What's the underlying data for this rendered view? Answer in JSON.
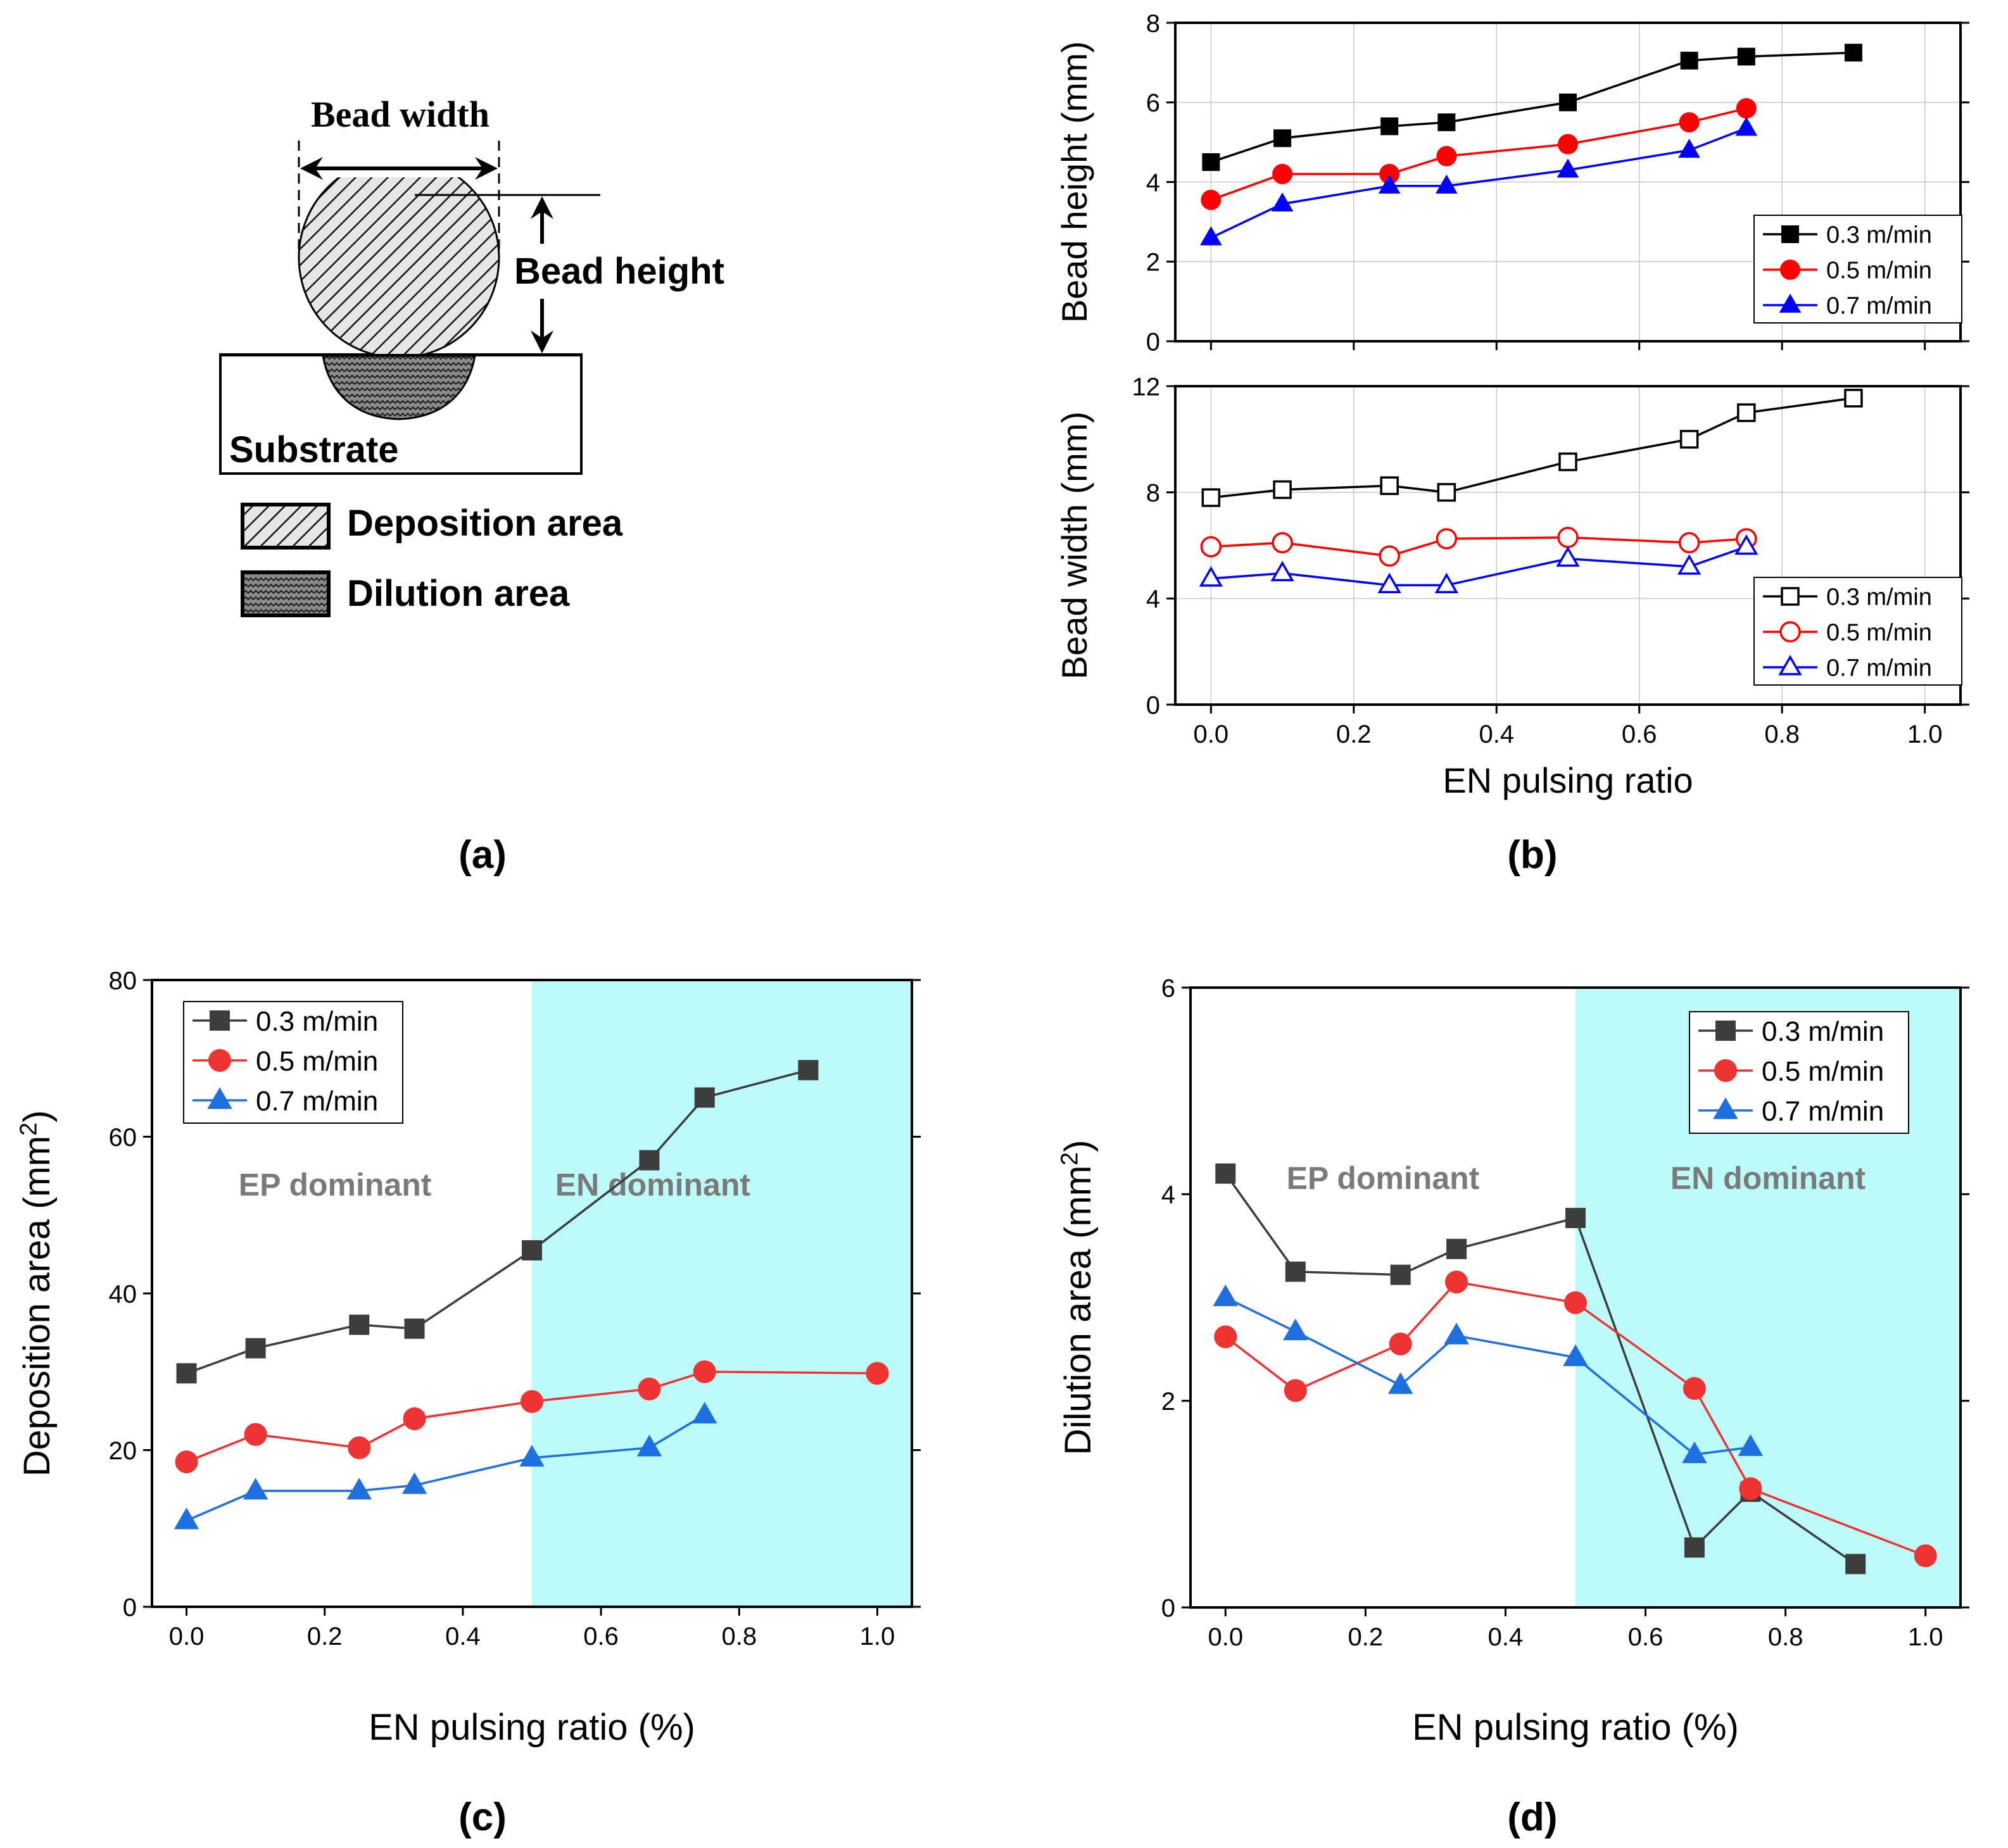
{
  "figure": {
    "panel_labels": [
      "(a)",
      "(b)",
      "(c)",
      "(d)"
    ]
  },
  "diagram": {
    "bead_width": "Bead width",
    "bead_height": "Bead height",
    "substrate": "Substrate",
    "legend_deposition": "Deposition area",
    "legend_dilution": "Dilution area"
  },
  "chart_data": [
    {
      "id": "b-top",
      "type": "line",
      "title": "",
      "xlabel": "",
      "ylabel": "Bead height (mm)",
      "xlim": [
        -0.05,
        1.05
      ],
      "ylim": [
        0,
        8
      ],
      "xticks": [
        0.0,
        0.2,
        0.4,
        0.6,
        0.8,
        1.0
      ],
      "yticks": [
        0,
        2,
        4,
        6,
        8
      ],
      "yticklabels": [
        "0",
        "2",
        "4",
        "6",
        "8"
      ],
      "grid": true,
      "legend_position": "bottom-right",
      "series": [
        {
          "name": "0.3 m/min",
          "color": "#000000",
          "marker": "square",
          "filled": true,
          "x": [
            0,
            0.1,
            0.25,
            0.33,
            0.5,
            0.67,
            0.75,
            0.9
          ],
          "y": [
            4.5,
            5.1,
            5.4,
            5.5,
            6.0,
            7.05,
            7.15,
            7.25
          ]
        },
        {
          "name": "0.5 m/min",
          "color": "#ff0000",
          "marker": "circle",
          "filled": true,
          "x": [
            0,
            0.1,
            0.25,
            0.33,
            0.5,
            0.67,
            0.75
          ],
          "y": [
            3.55,
            4.2,
            4.2,
            4.65,
            4.95,
            5.5,
            5.85
          ]
        },
        {
          "name": "0.7 m/min",
          "color": "#0000ff",
          "marker": "triangle",
          "filled": true,
          "x": [
            0,
            0.1,
            0.25,
            0.33,
            0.5,
            0.67,
            0.75
          ],
          "y": [
            2.6,
            3.45,
            3.9,
            3.9,
            4.3,
            4.8,
            5.35
          ]
        }
      ]
    },
    {
      "id": "b-bottom",
      "type": "line",
      "title": "",
      "xlabel": "EN pulsing ratio",
      "ylabel": "Bead width (mm)",
      "xlim": [
        -0.05,
        1.05
      ],
      "ylim": [
        0,
        12
      ],
      "xticks": [
        0.0,
        0.2,
        0.4,
        0.6,
        0.8,
        1.0
      ],
      "xticklabels": [
        "0.0",
        "0.2",
        "0.4",
        "0.6",
        "0.8",
        "1.0"
      ],
      "yticks": [
        0,
        4,
        8,
        12
      ],
      "yticklabels": [
        "0",
        "4",
        "8",
        "12"
      ],
      "grid": true,
      "legend_position": "bottom-right",
      "series": [
        {
          "name": "0.3 m/min",
          "color": "#000000",
          "marker": "square",
          "filled": false,
          "x": [
            0,
            0.1,
            0.25,
            0.33,
            0.5,
            0.67,
            0.75,
            0.9
          ],
          "y": [
            7.8,
            8.1,
            8.25,
            8.0,
            9.15,
            10.0,
            11.0,
            11.55
          ]
        },
        {
          "name": "0.5 m/min",
          "color": "#ff0000",
          "marker": "circle",
          "filled": false,
          "x": [
            0,
            0.1,
            0.25,
            0.33,
            0.5,
            0.67,
            0.75
          ],
          "y": [
            5.95,
            6.1,
            5.6,
            6.25,
            6.3,
            6.1,
            6.25
          ]
        },
        {
          "name": "0.7 m/min",
          "color": "#0000ff",
          "marker": "triangle",
          "filled": false,
          "x": [
            0,
            0.1,
            0.25,
            0.33,
            0.5,
            0.67,
            0.75
          ],
          "y": [
            4.75,
            4.95,
            4.5,
            4.5,
            5.5,
            5.2,
            5.95
          ]
        }
      ]
    },
    {
      "id": "c",
      "type": "line",
      "title": "",
      "xlabel": "EN pulsing ratio (%)",
      "ylabel": "Deposition area (mm2)",
      "ylabel_main": "Deposition area (mm",
      "ylabel_sup": "2",
      "ylabel_close": ")",
      "xlim": [
        -0.05,
        1.05
      ],
      "ylim": [
        0,
        80
      ],
      "xticks": [
        0.0,
        0.2,
        0.4,
        0.6,
        0.8,
        1.0
      ],
      "xticklabels": [
        "0.0",
        "0.2",
        "0.4",
        "0.6",
        "0.8",
        "1.0"
      ],
      "yticks": [
        0,
        20,
        40,
        60,
        80
      ],
      "yticklabels": [
        "0",
        "20",
        "40",
        "60",
        "80"
      ],
      "grid": false,
      "shade": {
        "from": 0.5,
        "to": 1.05,
        "color": "#bdfbfb"
      },
      "annotations": [
        {
          "text": "EP dominant",
          "x": 0.215,
          "y": 52.5
        },
        {
          "text": "EN dominant",
          "x": 0.675,
          "y": 52.5
        }
      ],
      "legend_position": "top-left",
      "series": [
        {
          "name": "0.3 m/min",
          "color": "#3d3d3d",
          "marker": "square",
          "filled": true,
          "x": [
            0,
            0.1,
            0.25,
            0.33,
            0.5,
            0.67,
            0.75,
            0.9
          ],
          "y": [
            29.8,
            33.0,
            36.0,
            35.5,
            45.5,
            57.0,
            65.0,
            68.5
          ]
        },
        {
          "name": "0.5 m/min",
          "color": "#ee3333",
          "marker": "circle",
          "filled": true,
          "x": [
            0,
            0.1,
            0.25,
            0.33,
            0.5,
            0.67,
            0.75,
            1.0
          ],
          "y": [
            18.5,
            22.0,
            20.3,
            24.0,
            26.2,
            27.8,
            30.0,
            29.8
          ]
        },
        {
          "name": "0.7 m/min",
          "color": "#1e6fe0",
          "marker": "triangle",
          "filled": true,
          "x": [
            0,
            0.1,
            0.25,
            0.33,
            0.5,
            0.67,
            0.75
          ],
          "y": [
            11.0,
            14.8,
            14.8,
            15.5,
            19.0,
            20.3,
            24.5
          ]
        }
      ]
    },
    {
      "id": "d",
      "type": "line",
      "title": "",
      "xlabel": "EN pulsing ratio (%)",
      "ylabel": "Dilution area (mm2)",
      "ylabel_main": "Dilution area (mm",
      "ylabel_sup": "2",
      "ylabel_close": ")",
      "xlim": [
        -0.05,
        1.05
      ],
      "ylim": [
        0,
        6
      ],
      "xticks": [
        0.0,
        0.2,
        0.4,
        0.6,
        0.8,
        1.0
      ],
      "xticklabels": [
        "0.0",
        "0.2",
        "0.4",
        "0.6",
        "0.8",
        "1.0"
      ],
      "yticks": [
        0,
        2,
        4,
        6
      ],
      "yticklabels": [
        "0",
        "2",
        "4",
        "6"
      ],
      "grid": false,
      "shade": {
        "from": 0.5,
        "to": 1.05,
        "color": "#bdfbfb"
      },
      "annotations": [
        {
          "text": "EP dominant",
          "x": 0.225,
          "y": 4.05
        },
        {
          "text": "EN dominant",
          "x": 0.775,
          "y": 4.05
        }
      ],
      "legend_position": "top-right",
      "series": [
        {
          "name": "0.3 m/min",
          "color": "#3d3d3d",
          "marker": "square",
          "filled": true,
          "x": [
            0,
            0.1,
            0.25,
            0.33,
            0.5,
            0.67,
            0.75,
            0.9
          ],
          "y": [
            4.2,
            3.25,
            3.22,
            3.47,
            3.77,
            0.58,
            1.12,
            0.42
          ]
        },
        {
          "name": "0.5 m/min",
          "color": "#ee3333",
          "marker": "circle",
          "filled": true,
          "x": [
            0,
            0.1,
            0.25,
            0.33,
            0.5,
            0.67,
            0.75,
            1.0
          ],
          "y": [
            2.62,
            2.1,
            2.55,
            3.15,
            2.95,
            2.12,
            1.15,
            0.5
          ]
        },
        {
          "name": "0.7 m/min",
          "color": "#1e6fe0",
          "marker": "triangle",
          "filled": true,
          "x": [
            0,
            0.1,
            0.25,
            0.33,
            0.5,
            0.67,
            0.75
          ],
          "y": [
            3.0,
            2.67,
            2.15,
            2.63,
            2.42,
            1.48,
            1.55
          ]
        }
      ]
    }
  ]
}
